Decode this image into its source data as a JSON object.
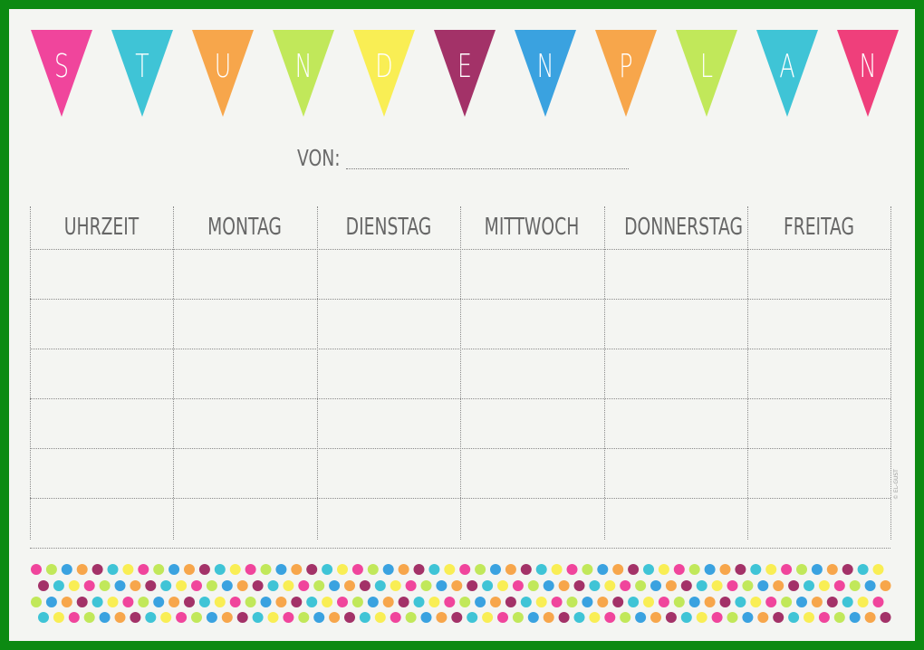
{
  "banner": {
    "letters": [
      "S",
      "T",
      "U",
      "N",
      "D",
      "E",
      "N",
      "P",
      "L",
      "A",
      "N"
    ],
    "colors": [
      "#f0459c",
      "#3fc4d6",
      "#f7a64b",
      "#c1e85a",
      "#f9ee54",
      "#a33268",
      "#3aa2e0",
      "#f7a64b",
      "#c1e85a",
      "#3fc4d6",
      "#ef3f7b"
    ]
  },
  "owner": {
    "label": "VON:"
  },
  "table": {
    "headers": [
      "UHRZEIT",
      "MONTAG",
      "DIENSTAG",
      "MITTWOCH",
      "DONNERSTAG",
      "FREITAG"
    ]
  },
  "footer": {
    "copyright": "© EL-GUST",
    "dot_colors": [
      "#f0459c",
      "#3fc4d6",
      "#f7a64b",
      "#c1e85a",
      "#f9ee54",
      "#a33268",
      "#3aa2e0"
    ]
  }
}
